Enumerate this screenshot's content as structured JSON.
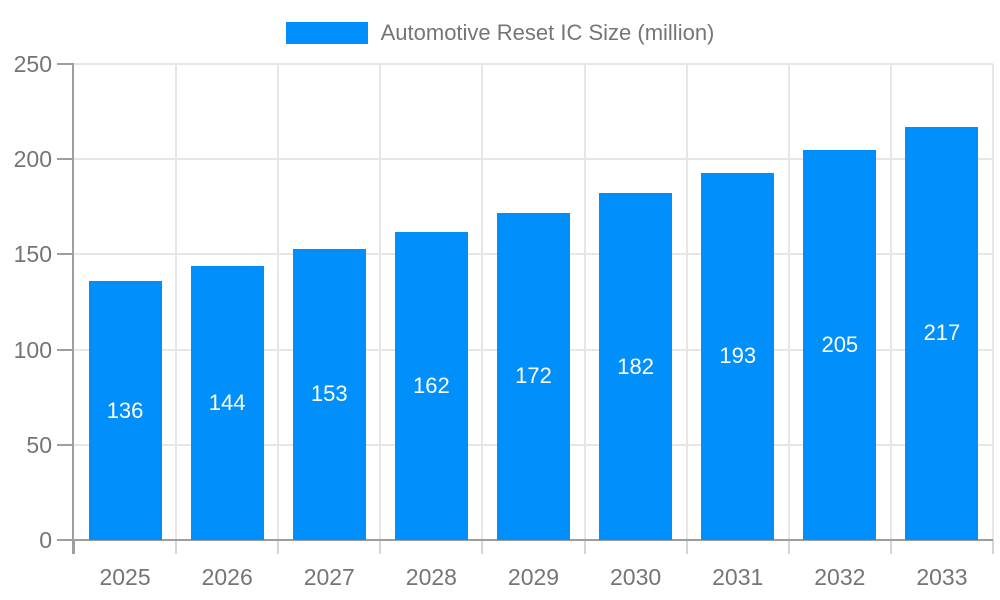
{
  "legend": {
    "label": "Automotive Reset IC Size (million)"
  },
  "chart_data": {
    "type": "bar",
    "title": "Automotive Reset IC Size (million)",
    "categories": [
      "2025",
      "2026",
      "2027",
      "2028",
      "2029",
      "2030",
      "2031",
      "2032",
      "2033"
    ],
    "values": [
      136,
      144,
      153,
      162,
      172,
      182,
      193,
      205,
      217
    ],
    "xlabel": "",
    "ylabel": "",
    "y_ticks": [
      0,
      50,
      100,
      150,
      200,
      250
    ],
    "ylim": [
      0,
      250
    ],
    "grid": true,
    "legend_position": "top",
    "bar_labels_shown": true,
    "colors": {
      "bar": "#008FFB",
      "bar_label_text": "#ffffff",
      "axis_text": "#757575",
      "gridline": "#e6e6e6",
      "axis_line": "#9e9e9e",
      "x_tick": "#d6d6d6",
      "background": "#ffffff"
    }
  }
}
